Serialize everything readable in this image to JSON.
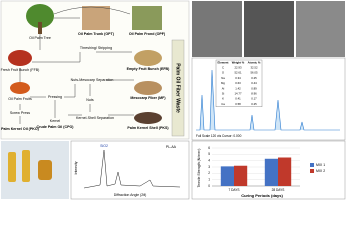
{
  "flow": {
    "side_label": "Palm Oil Fiber Waste",
    "nodes": [
      {
        "label": "Oil Palm Tree"
      },
      {
        "label": "Oil Palm Trunk (OPT)"
      },
      {
        "label": "Oil Palm Frond (OPF)"
      },
      {
        "label": "Fresh Fruit Bunch (FFB)"
      },
      {
        "label": "Threshing/ Stripping"
      },
      {
        "label": "Empty Fruit Bunch (EFB)"
      },
      {
        "label": "Oil Palm Fruits"
      },
      {
        "label": "Pressing"
      },
      {
        "label": "Nuts-Mesocarp Separation"
      },
      {
        "label": "Mesocarp Fiber (MF)"
      },
      {
        "label": "Nuts"
      },
      {
        "label": "Screw Press"
      },
      {
        "label": "Kernel"
      },
      {
        "label": "Kernel-Shell Separation"
      },
      {
        "label": "Palm Kernel Oil (PKO)"
      },
      {
        "label": "Crude Palm Oil (CPO)"
      },
      {
        "label": "Palm Kernel Shell (PKS)"
      }
    ]
  },
  "edx": {
    "headers": [
      "Element",
      "Weight %",
      "Atomic %"
    ],
    "rows": [
      [
        "C",
        "22.93",
        "32.52"
      ],
      [
        "O",
        "52.61",
        "56.05"
      ],
      [
        "Na",
        "0.34",
        "0.25"
      ],
      [
        "Mg",
        "0.63",
        "0.44"
      ],
      [
        "Al",
        "1.42",
        "0.89"
      ],
      [
        "Si",
        "14.77",
        "8.96"
      ],
      [
        "K",
        "0.41",
        "0.17"
      ],
      [
        "Ca",
        "0.58",
        "0.25"
      ]
    ],
    "footer": "Full Scale 120 cts Cursor: 0.000"
  },
  "xrd": {
    "y_label": "Intensity",
    "x_label": "Diffraction Angle (2θ)",
    "legend": "PL-AA",
    "peak_label": "SiO2"
  },
  "chart_data": {
    "type": "bar",
    "x_label": "Curing Periods (days)",
    "y_label": "Tensile Strength (N/mm²)",
    "categories": [
      "7 DAYS",
      "28 DAYS"
    ],
    "series": [
      {
        "name": "MIX 1",
        "color": "#4472c4",
        "values": [
          3.1,
          4.3
        ]
      },
      {
        "name": "MIX 2",
        "color": "#c0392b",
        "values": [
          3.2,
          4.5
        ]
      }
    ],
    "ylim": [
      0,
      6
    ],
    "yticks": [
      0,
      1,
      2,
      3,
      4,
      5,
      6
    ],
    "grid": true
  }
}
